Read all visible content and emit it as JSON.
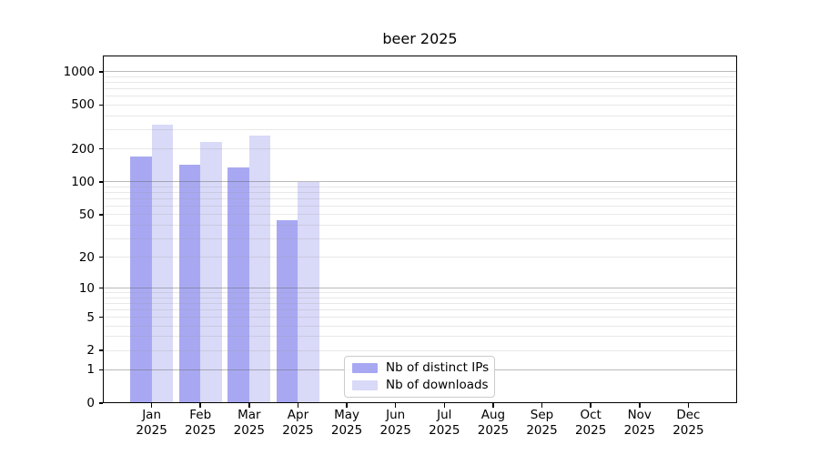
{
  "title": "beer 2025",
  "chart_data": {
    "type": "bar",
    "title": "beer 2025",
    "categories": [
      "Jan",
      "Feb",
      "Mar",
      "Apr",
      "May",
      "Jun",
      "Jul",
      "Aug",
      "Sep",
      "Oct",
      "Nov",
      "Dec"
    ],
    "year_label": "2025",
    "series": [
      {
        "name": "Nb of distinct IPs",
        "color": "#a8a8f2",
        "values": [
          170,
          144,
          135,
          44,
          0,
          0,
          0,
          0,
          0,
          0,
          0,
          0
        ]
      },
      {
        "name": "Nb of downloads",
        "color": "#d9d9f8",
        "values": [
          330,
          233,
          262,
          100,
          0,
          0,
          0,
          0,
          0,
          0,
          0,
          0
        ]
      }
    ],
    "xlabel": "",
    "ylabel": "",
    "yscale": "log1p",
    "y_ticks": [
      0,
      1,
      2,
      5,
      10,
      20,
      50,
      100,
      200,
      500,
      1000
    ],
    "y_major_gridlines": [
      1,
      10,
      100,
      1000
    ],
    "ylim": [
      0,
      1405
    ],
    "grid": "on",
    "legend_position": "lower center"
  },
  "colors": {
    "background": "#ffffff",
    "bar_distinct_ips": "#a8a8f2",
    "bar_downloads": "#d9d9f8",
    "axis": "#000000",
    "major_grid": "#b4b4b4",
    "minor_grid": "#e4e4e4",
    "legend_border": "#cccccc"
  }
}
